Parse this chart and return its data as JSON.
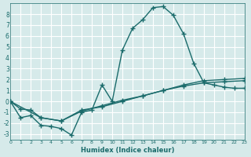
{
  "xlabel": "Humidex (Indice chaleur)",
  "ylabel": "",
  "background_color": "#d6eaea",
  "grid_color": "#ffffff",
  "line_color": "#1a6b6b",
  "xlim": [
    0,
    23
  ],
  "ylim": [
    -3.5,
    9
  ],
  "xticks": [
    0,
    1,
    2,
    3,
    4,
    5,
    6,
    7,
    8,
    9,
    10,
    11,
    12,
    13,
    14,
    15,
    16,
    17,
    18,
    19,
    20,
    21,
    22,
    23
  ],
  "yticks": [
    -3,
    -2,
    -1,
    0,
    1,
    2,
    3,
    4,
    5,
    6,
    7,
    8
  ],
  "series": [
    {
      "x": [
        0,
        1,
        2,
        3,
        4,
        5,
        6,
        7,
        8,
        9,
        10,
        11,
        12,
        13,
        14,
        15,
        16,
        17,
        18,
        19,
        20,
        21,
        22,
        23
      ],
      "y": [
        0,
        -1.5,
        -1.3,
        -2.2,
        -2.3,
        -2.5,
        -3.1,
        -1.0,
        -0.8,
        1.5,
        0.0,
        4.7,
        6.7,
        7.5,
        8.6,
        8.7,
        7.9,
        6.2,
        3.5,
        1.7,
        1.5,
        1.3,
        1.2,
        1.2
      ]
    },
    {
      "x": [
        0,
        1,
        2,
        3,
        5,
        7,
        9,
        11,
        13,
        15,
        17,
        19,
        21,
        23
      ],
      "y": [
        0,
        -0.7,
        -0.8,
        -1.5,
        -1.8,
        -0.8,
        -0.5,
        0.0,
        0.5,
        1.0,
        1.4,
        1.7,
        1.8,
        1.9
      ]
    },
    {
      "x": [
        0,
        3,
        5,
        7,
        9,
        11,
        13,
        15,
        17,
        19,
        21,
        23
      ],
      "y": [
        0,
        -1.5,
        -1.8,
        -0.9,
        -0.4,
        0.1,
        0.5,
        1.0,
        1.5,
        1.9,
        2.0,
        2.1
      ]
    }
  ]
}
